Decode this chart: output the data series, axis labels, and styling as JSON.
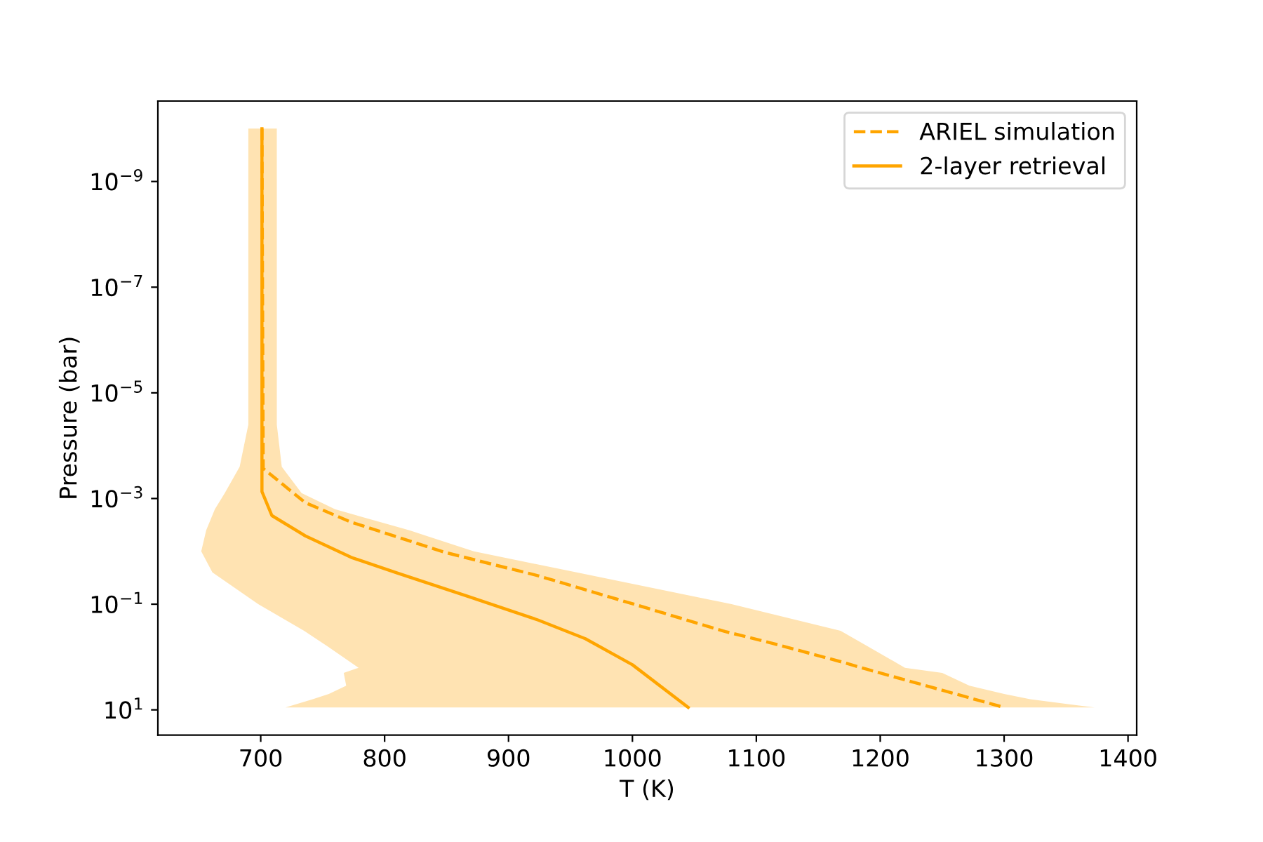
{
  "chart_data": {
    "type": "line",
    "xlabel": "T (K)",
    "ylabel": "Pressure (bar)",
    "series": [
      {
        "type": "area",
        "color": "#ffe3b2",
        "x": [
          690,
          690,
          683,
          671,
          663,
          656,
          652,
          661,
          698,
          735,
          754,
          779,
          767,
          769,
          755,
          742,
          720,
          1373,
          1321,
          1300,
          1272,
          1250,
          1220,
          1190,
          1168,
          1080,
          955,
          872,
          820,
          760,
          733,
          717,
          713,
          713
        ],
        "values": [
          1e-10,
          4e-05,
          0.00025,
          0.00079,
          0.0016,
          0.004,
          0.01,
          0.025,
          0.1,
          0.32,
          0.63,
          1.6,
          2,
          3.5,
          5,
          6.3,
          9,
          9,
          6.3,
          5,
          3.5,
          2,
          1.6,
          0.63,
          0.32,
          0.1,
          0.025,
          0.01,
          0.004,
          0.0016,
          0.00079,
          0.00025,
          4e-05,
          1e-10
        ]
      },
      {
        "name": "ARIEL simulation",
        "line_style": "dashed",
        "color": "#ffa500",
        "x": [
          701,
          702,
          736,
          773,
          849,
          924,
          1000,
          1075,
          1113,
          1170,
          1189,
          1300
        ],
        "values": [
          1e-10,
          0.00027,
          0.0012,
          0.0028,
          0.0105,
          0.029,
          0.098,
          0.33,
          0.55,
          1.26,
          1.7,
          9
        ]
      },
      {
        "name": "2-layer retrieval",
        "line_style": "solid",
        "color": "#ffa500",
        "x": [
          701,
          701,
          709,
          736,
          773,
          811,
          868,
          924,
          962,
          1000,
          1045
        ],
        "values": [
          1e-10,
          0.00074,
          0.0021,
          0.0051,
          0.013,
          0.026,
          0.072,
          0.2,
          0.45,
          1.4,
          9
        ]
      }
    ],
    "log": "y",
    "xlim": [
      617,
      1407
    ],
    "xticks": [
      700,
      800,
      900,
      1000,
      1100,
      1200,
      1300,
      1400
    ],
    "ylim": [
      30,
      3e-11
    ],
    "yticks": [
      {
        "value": 1e-09,
        "label": "10$^{−9}$"
      },
      {
        "value": 1e-07,
        "label": "10$^{−7}$"
      },
      {
        "value": 1e-05,
        "label": "10$^{−5}$"
      },
      {
        "value": 0.001,
        "label": "10$^{−3}$"
      },
      {
        "value": 0.1,
        "label": "10$^{−1}$"
      },
      {
        "value": 10,
        "label": "10$^{1}$"
      }
    ],
    "grid": false,
    "legend": "top right",
    "marker": "none"
  }
}
